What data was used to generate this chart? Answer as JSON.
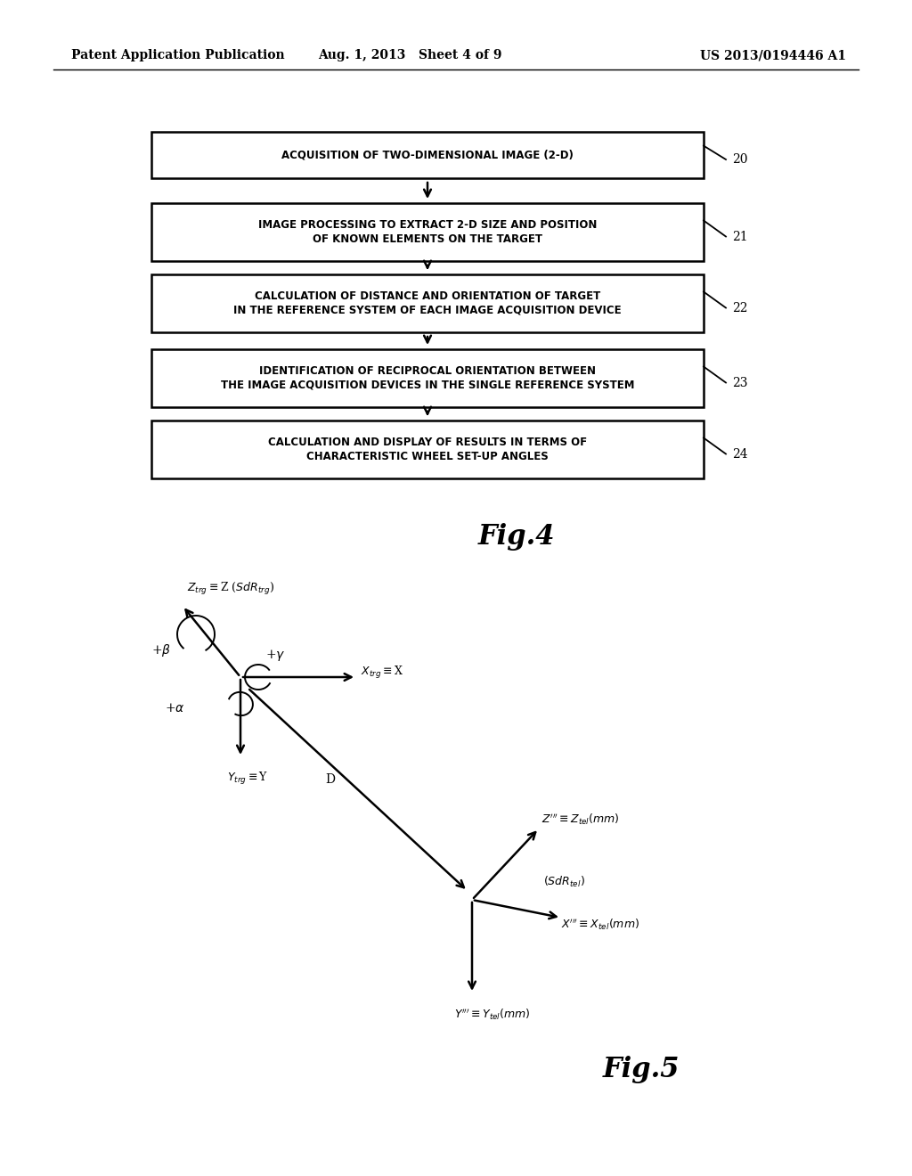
{
  "bg_color": "#ffffff",
  "header_left": "Patent Application Publication",
  "header_center": "Aug. 1, 2013   Sheet 4 of 9",
  "header_right": "US 2013/0194446 A1",
  "flowchart_boxes": [
    {
      "text": "ACQUISITION OF TWO-DIMENSIONAL IMAGE (2-D)",
      "label": "20"
    },
    {
      "text": "IMAGE PROCESSING TO EXTRACT 2-D SIZE AND POSITION\nOF KNOWN ELEMENTS ON THE TARGET",
      "label": "21"
    },
    {
      "text": "CALCULATION OF DISTANCE AND ORIENTATION OF TARGET\nIN THE REFERENCE SYSTEM OF EACH IMAGE ACQUISITION DEVICE",
      "label": "22"
    },
    {
      "text": "IDENTIFICATION OF RECIPROCAL ORIENTATION BETWEEN\nTHE IMAGE ACQUISITION DEVICES IN THE SINGLE REFERENCE SYSTEM",
      "label": "23"
    },
    {
      "text": "CALCULATION AND DISPLAY OF RESULTS IN TERMS OF\nCHARACTERISTIC WHEEL SET-UP ANGLES",
      "label": "24"
    }
  ],
  "fig4_label": "Fig.4",
  "fig5_label": "Fig.5"
}
